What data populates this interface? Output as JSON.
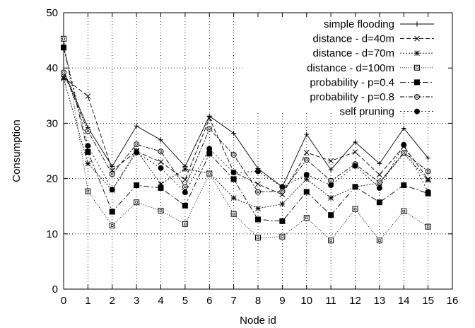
{
  "chart_data": {
    "type": "line",
    "xlabel": "Node id",
    "ylabel": "Consumption",
    "xlim": [
      0,
      16
    ],
    "ylim": [
      0,
      50
    ],
    "xticks": [
      "0",
      "1",
      "2",
      "3",
      "4",
      "5",
      "6",
      "7",
      "8",
      "9",
      "10",
      "11",
      "12",
      "13",
      "14",
      "15",
      "16"
    ],
    "yticks": [
      "0",
      "10",
      "20",
      "30",
      "40",
      "50"
    ],
    "grid": true,
    "legend_position": "top-right",
    "x": [
      0,
      1,
      2,
      3,
      4,
      5,
      6,
      7,
      8,
      9,
      10,
      11,
      12,
      13,
      14,
      15
    ],
    "series": [
      {
        "name": "simple flooding",
        "marker": "plus",
        "dash": "",
        "values": [
          39.5,
          29.2,
          22.2,
          29.5,
          27.0,
          22.2,
          31.3,
          28.2,
          21.8,
          18.5,
          28.0,
          21.6,
          26.6,
          22.7,
          29.1,
          23.7
        ]
      },
      {
        "name": "distance - d=40m",
        "marker": "cross",
        "dash": "6,3",
        "values": [
          38.3,
          34.9,
          21.5,
          24.9,
          23.0,
          19.8,
          30.9,
          21.2,
          19.0,
          17.1,
          24.7,
          23.2,
          24.8,
          20.7,
          25.8,
          19.9
        ]
      },
      {
        "name": "distance - d=70m",
        "marker": "star",
        "dash": "2,2",
        "values": [
          38.1,
          22.7,
          17.9,
          25.1,
          19.0,
          21.7,
          21.0,
          16.5,
          14.6,
          15.4,
          19.9,
          16.5,
          18.5,
          19.2,
          24.5,
          19.7
        ]
      },
      {
        "name": "distance - d=100m",
        "marker": "open-square",
        "dash": "1,2",
        "values": [
          45.3,
          17.7,
          11.5,
          15.7,
          14.2,
          11.8,
          20.9,
          13.6,
          9.3,
          9.5,
          12.9,
          8.8,
          14.5,
          8.8,
          14.1,
          11.3
        ]
      },
      {
        "name": "probability - p=0.4",
        "marker": "filled-square",
        "dash": "8,3,2,3",
        "values": [
          43.7,
          24.8,
          14.0,
          18.8,
          18.3,
          15.1,
          24.5,
          19.9,
          12.6,
          12.3,
          17.6,
          13.4,
          18.5,
          15.7,
          18.8,
          17.3
        ]
      },
      {
        "name": "probability - p=0.8",
        "marker": "open-circle",
        "dash": "6,2,2,2",
        "values": [
          39.2,
          28.6,
          20.8,
          26.2,
          24.9,
          18.5,
          29.0,
          24.3,
          17.6,
          17.7,
          23.4,
          19.6,
          22.6,
          19.3,
          24.7,
          21.3
        ]
      },
      {
        "name": "self pruning",
        "marker": "filled-circle",
        "dash": "2,3",
        "values": [
          43.8,
          25.9,
          18.0,
          24.7,
          21.9,
          17.5,
          25.4,
          21.1,
          21.3,
          18.5,
          20.7,
          18.8,
          22.3,
          18.3,
          26.1,
          17.6
        ]
      }
    ]
  }
}
